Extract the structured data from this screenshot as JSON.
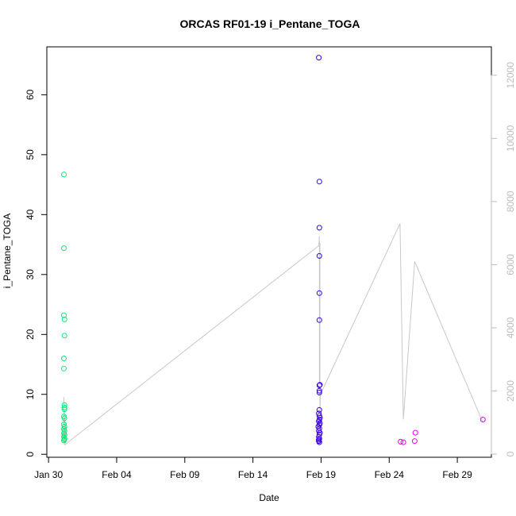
{
  "chart_data": {
    "type": "scatter",
    "title": "ORCAS RF01-19 i_Pentane_TOGA",
    "xlabel": "Date",
    "ylabel": "i_Pentane_TOGA",
    "x_axis": {
      "type": "date",
      "lim": [
        "2016-01-29T21:00",
        "2016-03-02T12:00"
      ],
      "ticks": [
        {
          "date": "2016-01-30",
          "label": "Jan 30"
        },
        {
          "date": "2016-02-04",
          "label": "Feb 04"
        },
        {
          "date": "2016-02-09",
          "label": "Feb 09"
        },
        {
          "date": "2016-02-14",
          "label": "Feb 14"
        },
        {
          "date": "2016-02-19",
          "label": "Feb 19"
        },
        {
          "date": "2016-02-24",
          "label": "Feb 24"
        },
        {
          "date": "2016-02-29",
          "label": "Feb 29"
        }
      ]
    },
    "y_left": {
      "lim": [
        -0.5,
        68
      ],
      "ticks": [
        0,
        10,
        20,
        30,
        40,
        50,
        60
      ]
    },
    "y_right": {
      "lim": [
        -100,
        12900
      ],
      "ticks": [
        0,
        2000,
        4000,
        6000,
        8000,
        10000,
        12000
      ],
      "color": "#bdbdbd"
    },
    "series": [
      {
        "color": "#00ee76",
        "points": [
          {
            "x": "2016-01-31T03:00",
            "y": 46.7
          },
          {
            "x": "2016-01-31T03:00",
            "y": 34.4
          },
          {
            "x": "2016-01-31T03:00",
            "y": 23.2
          },
          {
            "x": "2016-01-31T04:00",
            "y": 22.5
          },
          {
            "x": "2016-01-31T04:00",
            "y": 19.8
          },
          {
            "x": "2016-01-31T03:00",
            "y": 16.0
          },
          {
            "x": "2016-01-31T03:00",
            "y": 14.3
          },
          {
            "x": "2016-01-31T04:00",
            "y": 8.2
          },
          {
            "x": "2016-01-31T04:00",
            "y": 7.8
          },
          {
            "x": "2016-01-31T04:00",
            "y": 7.5
          },
          {
            "x": "2016-01-31T03:00",
            "y": 6.3
          },
          {
            "x": "2016-01-31T04:00",
            "y": 6.0
          },
          {
            "x": "2016-01-31T03:00",
            "y": 5.0
          },
          {
            "x": "2016-01-31T04:00",
            "y": 4.6
          },
          {
            "x": "2016-01-31T03:00",
            "y": 4.2
          },
          {
            "x": "2016-01-31T04:00",
            "y": 3.9
          },
          {
            "x": "2016-01-31T03:00",
            "y": 3.5
          },
          {
            "x": "2016-01-31T04:00",
            "y": 3.2
          },
          {
            "x": "2016-01-31T03:00",
            "y": 2.9
          },
          {
            "x": "2016-01-31T04:00",
            "y": 2.6
          },
          {
            "x": "2016-01-31T03:00",
            "y": 2.3
          },
          {
            "x": "2016-01-31T04:00",
            "y": 2.5
          }
        ]
      },
      {
        "color": "#3a00ee",
        "points": [
          {
            "x": "2016-02-18T20:00",
            "y": 66.2
          },
          {
            "x": "2016-02-18T21:00",
            "y": 45.5
          },
          {
            "x": "2016-02-18T21:00",
            "y": 37.8
          },
          {
            "x": "2016-02-18T21:00",
            "y": 33.1
          },
          {
            "x": "2016-02-18T21:00",
            "y": 26.9
          },
          {
            "x": "2016-02-18T21:00",
            "y": 22.4
          },
          {
            "x": "2016-02-18T22:00",
            "y": 11.6
          },
          {
            "x": "2016-02-18T21:00",
            "y": 11.5
          },
          {
            "x": "2016-02-18T21:00",
            "y": 10.6
          },
          {
            "x": "2016-02-18T21:00",
            "y": 10.3
          },
          {
            "x": "2016-02-18T21:00",
            "y": 7.4
          },
          {
            "x": "2016-02-18T20:00",
            "y": 6.8
          },
          {
            "x": "2016-02-18T21:00",
            "y": 6.4
          },
          {
            "x": "2016-02-18T22:00",
            "y": 6.1
          },
          {
            "x": "2016-02-18T21:00",
            "y": 5.8
          },
          {
            "x": "2016-02-18T20:00",
            "y": 5.5
          },
          {
            "x": "2016-02-18T22:00",
            "y": 5.2
          },
          {
            "x": "2016-02-18T21:00",
            "y": 4.9
          },
          {
            "x": "2016-02-18T19:00",
            "y": 4.6
          },
          {
            "x": "2016-02-18T21:00",
            "y": 4.3
          },
          {
            "x": "2016-02-18T20:00",
            "y": 3.9
          },
          {
            "x": "2016-02-18T22:00",
            "y": 3.6
          },
          {
            "x": "2016-02-18T21:00",
            "y": 3.3
          },
          {
            "x": "2016-02-18T20:00",
            "y": 2.9
          },
          {
            "x": "2016-02-18T21:00",
            "y": 2.6
          },
          {
            "x": "2016-02-18T20:00",
            "y": 2.4
          },
          {
            "x": "2016-02-18T20:00",
            "y": 2.2
          },
          {
            "x": "2016-02-18T21:00",
            "y": 2.0
          }
        ]
      },
      {
        "color": "#ee00ee",
        "points": [
          {
            "x": "2016-02-24T20:00",
            "y": 2.1
          },
          {
            "x": "2016-02-25T01:00",
            "y": 2.0
          },
          {
            "x": "2016-02-25T21:00",
            "y": 2.2
          },
          {
            "x": "2016-02-25T22:00",
            "y": 3.6
          },
          {
            "x": "2016-03-01T21:00",
            "y": 5.8
          }
        ]
      }
    ],
    "secondary_line": {
      "axis": "right",
      "color": "#c8c8c8",
      "points": [
        {
          "x": "2016-01-31T03:00",
          "y": 1800
        },
        {
          "x": "2016-01-31T03:00",
          "y": 600
        },
        {
          "x": "2016-01-31T04:00",
          "y": 1400
        },
        {
          "x": "2016-01-31T04:00",
          "y": 300
        },
        {
          "x": "2016-01-31T05:00",
          "y": 1100
        },
        {
          "x": "2016-01-31T05:00",
          "y": 300
        },
        {
          "x": "2016-02-18T20:00",
          "y": 6600
        },
        {
          "x": "2016-02-18T21:00",
          "y": 6900
        },
        {
          "x": "2016-02-18T21:00",
          "y": 2200
        },
        {
          "x": "2016-02-18T22:00",
          "y": 6700
        },
        {
          "x": "2016-02-18T22:00",
          "y": 1300
        },
        {
          "x": "2016-02-18T23:00",
          "y": 1900
        },
        {
          "x": "2016-02-24T19:00",
          "y": 7300
        },
        {
          "x": "2016-02-25T01:00",
          "y": 1100
        },
        {
          "x": "2016-02-25T21:00",
          "y": 6100
        },
        {
          "x": "2016-03-01T21:00",
          "y": 1000
        }
      ]
    }
  }
}
